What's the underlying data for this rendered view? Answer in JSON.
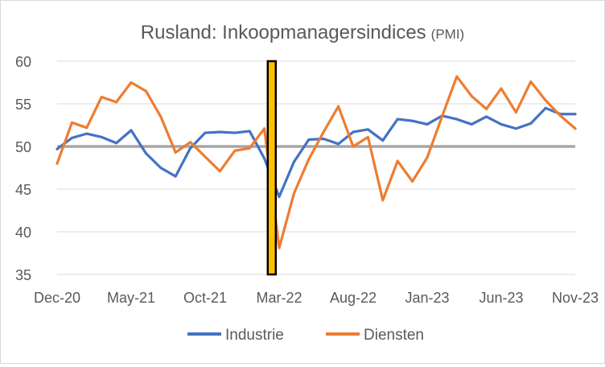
{
  "chart_data": {
    "type": "line",
    "title": "Rusland: Inkoopmanagersindices",
    "title_suffix": "(PMI)",
    "xlabel": "",
    "ylabel": "",
    "ylim": [
      35,
      60
    ],
    "yticks": [
      35,
      40,
      45,
      50,
      55,
      60
    ],
    "x": [
      "Dec-20",
      "Jan-21",
      "Feb-21",
      "Mar-21",
      "Apr-21",
      "May-21",
      "Jun-21",
      "Jul-21",
      "Aug-21",
      "Sep-21",
      "Oct-21",
      "Nov-21",
      "Dec-21",
      "Jan-22",
      "Feb-22",
      "Mar-22",
      "Apr-22",
      "May-22",
      "Jun-22",
      "Jul-22",
      "Aug-22",
      "Sep-22",
      "Oct-22",
      "Nov-22",
      "Dec-22",
      "Jan-23",
      "Feb-23",
      "Mar-23",
      "Apr-23",
      "May-23",
      "Jun-23",
      "Jul-23",
      "Aug-23",
      "Sep-23",
      "Oct-23",
      "Nov-23"
    ],
    "x_tick_labels": [
      "Dec-20",
      "May-21",
      "Oct-21",
      "Mar-22",
      "Aug-22",
      "Jan-23",
      "Jun-23",
      "Nov-23"
    ],
    "x_tick_indices": [
      0,
      5,
      10,
      15,
      20,
      25,
      30,
      35
    ],
    "series": [
      {
        "name": "Industrie",
        "color": "#4472c4",
        "values": [
          49.7,
          51.0,
          51.5,
          51.1,
          50.4,
          51.9,
          49.2,
          47.5,
          46.5,
          49.8,
          51.6,
          51.7,
          51.6,
          51.8,
          48.6,
          44.1,
          48.2,
          50.8,
          50.9,
          50.3,
          51.7,
          52.0,
          50.7,
          53.2,
          53.0,
          52.6,
          53.6,
          53.2,
          52.6,
          53.5,
          52.6,
          52.1,
          52.7,
          54.5,
          53.8,
          53.8
        ]
      },
      {
        "name": "Diensten",
        "color": "#ed7d31",
        "values": [
          48.0,
          52.8,
          52.2,
          55.8,
          55.2,
          57.5,
          56.5,
          53.5,
          49.3,
          50.5,
          48.8,
          47.1,
          49.5,
          49.8,
          52.1,
          38.1,
          44.5,
          48.5,
          51.7,
          54.7,
          50.0,
          51.1,
          43.7,
          48.3,
          45.9,
          48.7,
          53.5,
          58.2,
          55.9,
          54.4,
          56.8,
          54.0,
          57.6,
          55.4,
          53.6,
          52.1
        ]
      }
    ],
    "reference_line": {
      "value": 50,
      "color": "#a6a6a6"
    },
    "marker": {
      "index": 14.5,
      "fill": "#ffc000",
      "stroke": "#000000"
    },
    "grid": true,
    "grid_color": "#d9d9d9",
    "legend_position": "bottom"
  }
}
